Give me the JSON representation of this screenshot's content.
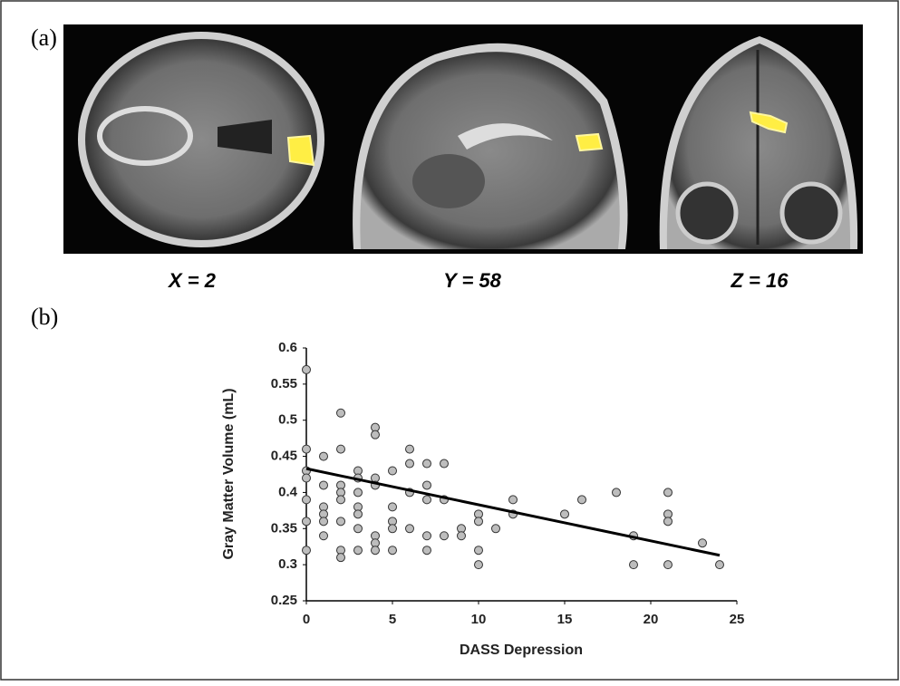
{
  "panel_labels": [
    "(a)",
    "(b)"
  ],
  "slices": [
    "X = 2",
    "Y = 58",
    "Z = 16"
  ],
  "chart_data": {
    "type": "scatter",
    "x_label": "DASS Depression",
    "y_label": "Gray Matter Volume (mL)",
    "x": [
      0,
      0,
      0,
      0,
      0,
      0,
      0,
      1,
      1,
      1,
      1,
      1,
      1,
      2,
      2,
      2,
      2,
      2,
      2,
      2,
      2,
      3,
      3,
      3,
      3,
      3,
      3,
      3,
      4,
      4,
      4,
      4,
      4,
      4,
      4,
      5,
      5,
      5,
      5,
      5,
      6,
      6,
      6,
      6,
      7,
      7,
      7,
      7,
      7,
      8,
      8,
      8,
      9,
      9,
      10,
      10,
      10,
      10,
      11,
      12,
      12,
      15,
      16,
      18,
      19,
      19,
      21,
      21,
      21,
      21,
      23,
      24
    ],
    "values": [
      0.57,
      0.46,
      0.43,
      0.42,
      0.39,
      0.36,
      0.32,
      0.45,
      0.41,
      0.38,
      0.37,
      0.36,
      0.34,
      0.51,
      0.46,
      0.41,
      0.4,
      0.39,
      0.36,
      0.32,
      0.31,
      0.43,
      0.42,
      0.4,
      0.38,
      0.37,
      0.35,
      0.32,
      0.49,
      0.48,
      0.42,
      0.41,
      0.34,
      0.33,
      0.32,
      0.43,
      0.38,
      0.36,
      0.35,
      0.32,
      0.46,
      0.44,
      0.4,
      0.35,
      0.44,
      0.41,
      0.39,
      0.34,
      0.32,
      0.44,
      0.39,
      0.34,
      0.35,
      0.34,
      0.37,
      0.36,
      0.32,
      0.3,
      0.35,
      0.39,
      0.37,
      0.37,
      0.39,
      0.4,
      0.34,
      0.3,
      0.4,
      0.37,
      0.36,
      0.3,
      0.33,
      0.3
    ],
    "color": "#bdbdbd",
    "trend_line": {
      "x": [
        0,
        24
      ],
      "values": [
        0.433,
        0.313
      ],
      "color": "#000000"
    },
    "xlim": [
      0,
      25
    ],
    "xticks": [
      0,
      5,
      10,
      15,
      20,
      25
    ],
    "ylim": [
      0.25,
      0.6
    ],
    "yticks": [
      0.25,
      0.3,
      0.35,
      0.4,
      0.45,
      0.5,
      0.55,
      0.6
    ]
  }
}
